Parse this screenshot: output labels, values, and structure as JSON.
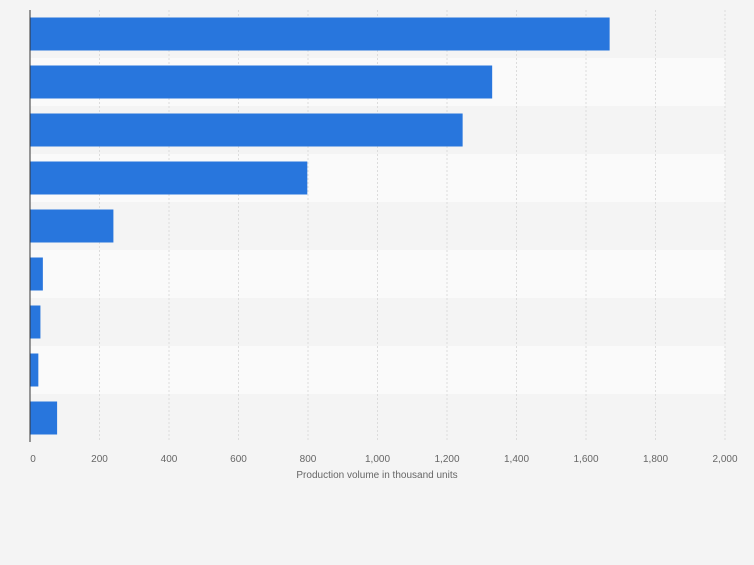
{
  "chart_data": {
    "type": "bar",
    "orientation": "horizontal",
    "title": "",
    "xlabel": "Production volume in thousand units",
    "ylabel": "",
    "categories": [
      "",
      "",
      "",
      "",
      "",
      "",
      "",
      "",
      ""
    ],
    "values": [
      1668,
      1330,
      1245,
      798,
      240,
      37,
      30,
      24,
      78
    ],
    "xlim": [
      0,
      2000
    ],
    "xticks": [
      0,
      200,
      400,
      600,
      800,
      1000,
      1200,
      1400,
      1600,
      1800,
      2000
    ],
    "xtick_labels": [
      "0",
      "200",
      "400",
      "600",
      "800",
      "1,000",
      "1,200",
      "1,400",
      "1,600",
      "1,800",
      "2,000"
    ],
    "grid": true,
    "colors": {
      "bar": "#2876dd",
      "band_a": "#f4f4f4",
      "band_b": "#fafafa",
      "grid": "#dcdcdc",
      "axis": "#333333",
      "text": "#666666"
    }
  }
}
